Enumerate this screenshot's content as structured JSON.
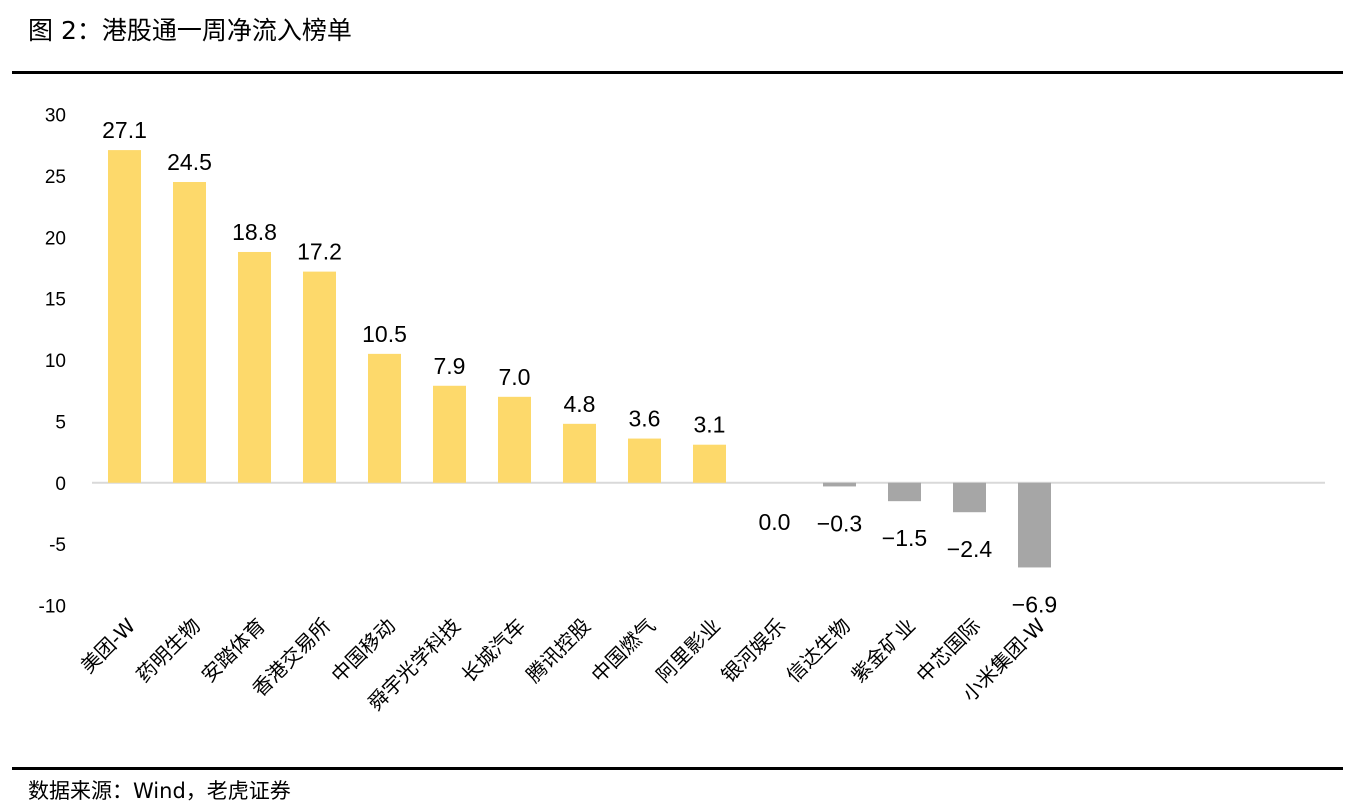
{
  "figure": {
    "title": "图 2：港股通一周净流入榜单",
    "source": "数据来源：Wind，老虎证券"
  },
  "chart_data": {
    "type": "bar",
    "categories": [
      "美团-W",
      "药明生物",
      "安踏体育",
      "香港交易所",
      "中国移动",
      "舜宇光学科技",
      "长城汽车",
      "腾讯控股",
      "中国燃气",
      "阿里影业",
      "银河娱乐",
      "信达生物",
      "紫金矿业",
      "中芯国际",
      "小米集团-W"
    ],
    "values": [
      27.1,
      24.5,
      18.8,
      17.2,
      10.5,
      7.9,
      7.0,
      4.8,
      3.6,
      3.1,
      0.0,
      -0.3,
      -1.5,
      -2.4,
      -6.9
    ],
    "data_labels": [
      "27.1",
      "24.5",
      "18.8",
      "17.2",
      "10.5",
      "7.9",
      "7.0",
      "4.8",
      "3.6",
      "3.1",
      "0.0",
      "−0.3",
      "−1.5",
      "−2.4",
      "−6.9"
    ],
    "y_ticks": [
      "30",
      "25",
      "20",
      "15",
      "10",
      "5",
      "0",
      "-5",
      "-10"
    ],
    "ylim": [
      -10,
      30
    ],
    "title": "",
    "xlabel": "",
    "ylabel": "",
    "grid": false,
    "colors": {
      "positive": "#FDD96B",
      "negative": "#A6A6A6",
      "axis": "#D9D9D9"
    }
  }
}
